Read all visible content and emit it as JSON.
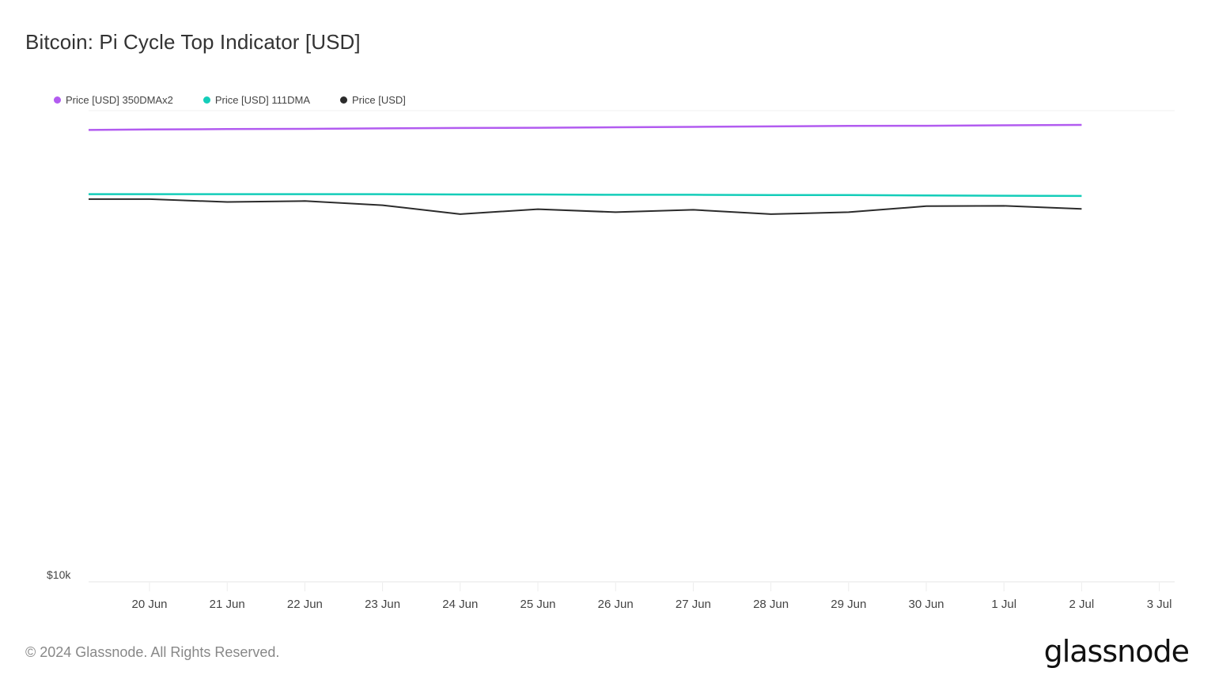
{
  "title": "Bitcoin: Pi Cycle Top Indicator [USD]",
  "legend": [
    {
      "label": "Price [USD] 350DMAx2",
      "color": "#b25cf0"
    },
    {
      "label": "Price [USD] 111DMA",
      "color": "#14cdb9"
    },
    {
      "label": "Price [USD]",
      "color": "#2b2b2b"
    }
  ],
  "y_axis": {
    "tick_label": "$10k"
  },
  "x_axis": {
    "ticks": [
      "20 Jun",
      "21 Jun",
      "22 Jun",
      "23 Jun",
      "24 Jun",
      "25 Jun",
      "26 Jun",
      "27 Jun",
      "28 Jun",
      "29 Jun",
      "30 Jun",
      "1 Jul",
      "2 Jul",
      "3 Jul"
    ]
  },
  "footer": {
    "copyright": "© 2024 Glassnode. All Rights Reserved.",
    "brand": "glassnode"
  },
  "chart_data": {
    "type": "line",
    "title": "Bitcoin: Pi Cycle Top Indicator [USD]",
    "xlabel": "",
    "ylabel": "",
    "y_scale": "log",
    "ylim": [
      10000,
      100000
    ],
    "y_tick_labels": [
      "$10k"
    ],
    "x": [
      "19 Jun",
      "20 Jun",
      "21 Jun",
      "22 Jun",
      "23 Jun",
      "24 Jun",
      "25 Jun",
      "26 Jun",
      "27 Jun",
      "28 Jun",
      "29 Jun",
      "30 Jun",
      "1 Jul",
      "2 Jul"
    ],
    "x_tick_labels": [
      "20 Jun",
      "21 Jun",
      "22 Jun",
      "23 Jun",
      "24 Jun",
      "25 Jun",
      "26 Jun",
      "27 Jun",
      "28 Jun",
      "29 Jun",
      "30 Jun",
      "1 Jul",
      "2 Jul",
      "3 Jul"
    ],
    "legend_position": "top-left",
    "grid": "horizontal",
    "series": [
      {
        "name": "Price [USD] 350DMAx2",
        "color": "#b25cf0",
        "values": [
          91000,
          91200,
          91400,
          91500,
          91700,
          91900,
          92000,
          92200,
          92400,
          92600,
          92800,
          92900,
          93100,
          93300
        ]
      },
      {
        "name": "Price [USD] 111DMA",
        "color": "#14cdb9",
        "values": [
          66500,
          66500,
          66500,
          66500,
          66500,
          66400,
          66400,
          66300,
          66300,
          66200,
          66200,
          66100,
          66000,
          65900
        ]
      },
      {
        "name": "Price [USD]",
        "color": "#2b2b2b",
        "values": [
          64900,
          64900,
          64000,
          64300,
          63000,
          60300,
          61800,
          60900,
          61600,
          60300,
          60900,
          62700,
          62800,
          61900
        ]
      }
    ]
  }
}
